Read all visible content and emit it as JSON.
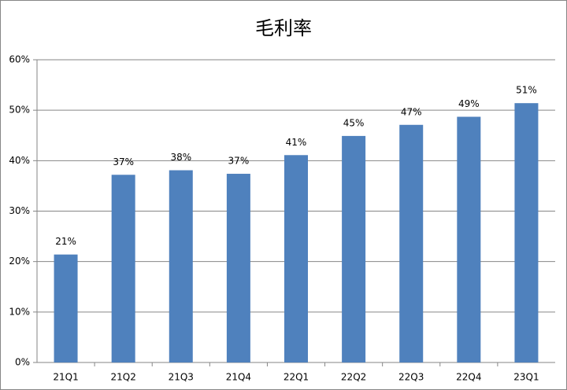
{
  "chart_data": {
    "type": "bar",
    "title": "毛利率",
    "categories": [
      "21Q1",
      "21Q2",
      "21Q3",
      "21Q4",
      "22Q1",
      "22Q2",
      "22Q3",
      "22Q4",
      "23Q1"
    ],
    "values": [
      21.4,
      37.2,
      38.1,
      37.4,
      41.1,
      44.9,
      47.1,
      48.7,
      51.4
    ],
    "value_labels": [
      "21%",
      "37%",
      "38%",
      "37%",
      "41%",
      "45%",
      "47%",
      "49%",
      "51%"
    ],
    "color": "#4f81bd",
    "ylim": [
      0,
      60
    ],
    "yticks": [
      {
        "value": 0,
        "label": "0%"
      },
      {
        "value": 10,
        "label": "10%"
      },
      {
        "value": 20,
        "label": "20%"
      },
      {
        "value": 30,
        "label": "30%"
      },
      {
        "value": 40,
        "label": "40%"
      },
      {
        "value": 50,
        "label": "50%"
      },
      {
        "value": 60,
        "label": "60%"
      }
    ],
    "grid": true
  }
}
